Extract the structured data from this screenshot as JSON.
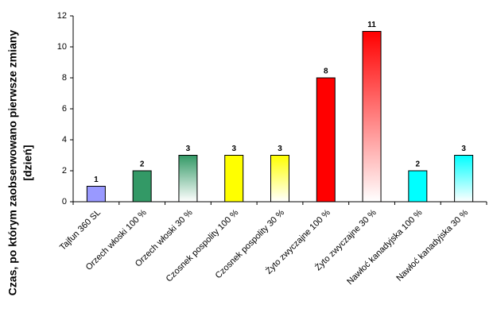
{
  "chart_data": {
    "type": "bar",
    "ylabel": [
      "Czas, po którym zaobserwowano pierwsze zmiany",
      "[dzień]"
    ],
    "categories": [
      "Tajfun 360 SL",
      "Orzech włoski 100 %",
      "Orzech włoski 30 %",
      "Czosnek pospolity 100 %",
      "Czosnek pospolity 30 %",
      "Żyto zwyczajne 100 %",
      "Żyto zwyczajne 30 %",
      "Nawłoć kanadyjska 100 %",
      "Nawłoć kanadyjska 30 %"
    ],
    "values": [
      1,
      2,
      3,
      3,
      3,
      8,
      11,
      2,
      3
    ],
    "colors": [
      "#9999ff",
      "#339966",
      "#339966",
      "#ffff00",
      "#ffff00",
      "#ff0000",
      "#ff0000",
      "#00ffff",
      "#00ffff"
    ],
    "gradient": [
      false,
      false,
      true,
      false,
      true,
      false,
      true,
      false,
      true
    ],
    "ylim": [
      0,
      12
    ],
    "yticks": [
      0,
      2,
      4,
      6,
      8,
      10,
      12
    ],
    "grid": false
  }
}
